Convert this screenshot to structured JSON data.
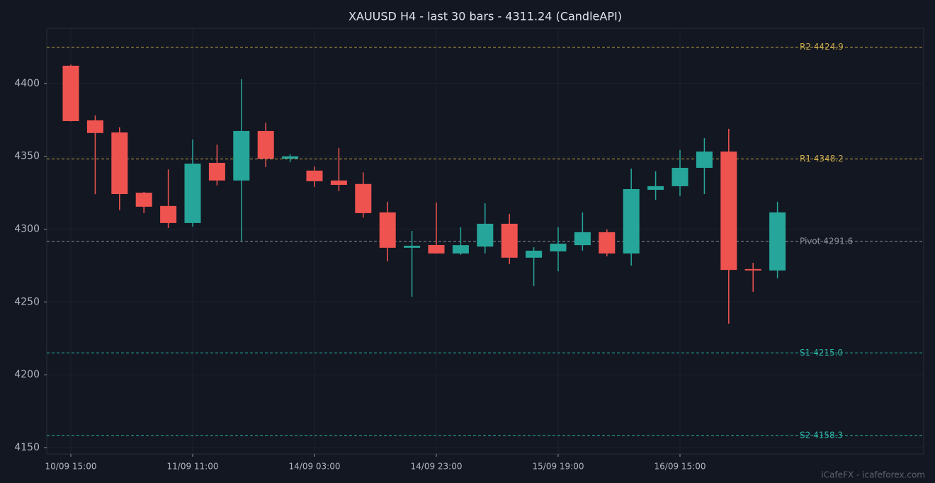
{
  "chart_data": {
    "type": "candlestick",
    "title": "XAUUSD H4 - last 30 bars - 4311.24 (CandleAPI)",
    "watermark": "iCafeFX - icafeforex.com",
    "categories": [
      "10/09 15:00",
      null,
      null,
      null,
      null,
      "11/09 11:00",
      null,
      null,
      null,
      null,
      "14/09 03:00",
      null,
      null,
      null,
      null,
      "14/09 23:00",
      null,
      null,
      null,
      null,
      "15/09 19:00",
      null,
      null,
      null,
      null,
      "16/09 15:00",
      null,
      null,
      null,
      null
    ],
    "open": [
      4412.2,
      4374.7,
      4366.4,
      4325.0,
      4315.9,
      4304.2,
      4345.5,
      4333.4,
      4367.4,
      4348.4,
      4340.2,
      4333.4,
      4331.0,
      4311.5,
      4287.2,
      4289.1,
      4283.3,
      4288.0,
      4303.7,
      4280.4,
      4284.7,
      4289.0,
      4297.9,
      4283.3,
      4327.0,
      4329.5,
      4342.1,
      4353.3,
      4272.6,
      4271.6
    ],
    "high": [
      4413.0,
      4378.0,
      4370.0,
      4325.6,
      4341.0,
      4361.6,
      4358.0,
      4403.0,
      4373.0,
      4351.4,
      4343.0,
      4355.7,
      4339.0,
      4318.8,
      4298.8,
      4318.3,
      4301.3,
      4317.8,
      4310.5,
      4287.6,
      4301.3,
      4311.5,
      4299.8,
      4341.6,
      4339.7,
      4354.3,
      4362.5,
      4368.9,
      4276.9,
      4318.8
    ],
    "low": [
      4374.0,
      4324.0,
      4313.0,
      4311.0,
      4300.8,
      4301.7,
      4330.0,
      4292.0,
      4342.6,
      4346.0,
      4329.0,
      4326.0,
      4308.0,
      4277.9,
      4253.6,
      4283.3,
      4282.3,
      4283.3,
      4276.0,
      4260.9,
      4271.0,
      4285.2,
      4281.3,
      4275.0,
      4320.2,
      4322.7,
      4324.1,
      4235.1,
      4257.0,
      4266.2
    ],
    "close": [
      4374.2,
      4366.0,
      4324.1,
      4315.4,
      4304.2,
      4345.0,
      4333.4,
      4367.4,
      4348.4,
      4350.0,
      4332.9,
      4330.4,
      4311.0,
      4287.2,
      4288.6,
      4283.3,
      4289.0,
      4303.7,
      4280.4,
      4285.2,
      4290.0,
      4297.9,
      4283.3,
      4327.5,
      4329.5,
      4342.1,
      4353.3,
      4272.0,
      4271.6,
      4311.5
    ],
    "up_color": "#26a69a",
    "down_color": "#ef5350",
    "ylim": [
      4145.6,
      4437.9
    ],
    "yticks": [
      4150,
      4200,
      4250,
      4300,
      4350,
      4400
    ],
    "grid": true,
    "levels": [
      {
        "label": "R2 4424.9",
        "value": 4424.9,
        "color": "#c9a94a"
      },
      {
        "label": "R1 4348.2",
        "value": 4348.2,
        "color": "#c9a94a"
      },
      {
        "label": "Pivot 4291.6",
        "value": 4291.6,
        "color": "#8a8f98"
      },
      {
        "label": "S1 4215.0",
        "value": 4215.0,
        "color": "#2bb3a3"
      },
      {
        "label": "S2 4158.3",
        "value": 4158.3,
        "color": "#2bb3a3"
      }
    ]
  }
}
